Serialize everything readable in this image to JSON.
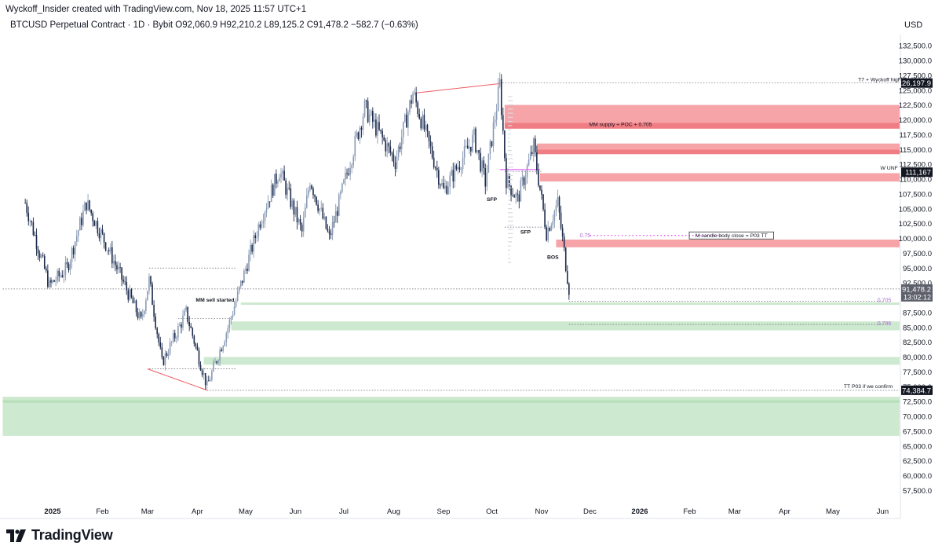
{
  "header": {
    "credit": "Wyckoff_Insider created with TradingView.com, Nov 18, 2025 11:57 UTC+1",
    "symbol_line": "BTCUSD Perpetual Contract · 1D · Bybit   O92,060.9  H92,210.2  L89,125.2  C91,478.2  −582.7 (−0.63%)",
    "currency": "USD"
  },
  "brand": {
    "name": "TradingView",
    "icon": "tradingview-logo-icon"
  },
  "colors": {
    "bull": "#8a9bb5",
    "bear": "#1c2a4a",
    "supply": "#f7a4a8",
    "supply_dark": "#ef7d83",
    "demand": "#cde9cf",
    "demand_dark": "#b6deb8",
    "fib": "#b06ad6",
    "magenta": "#e040fb"
  },
  "chart_data": {
    "type": "candlestick",
    "title": "BTCUSD Perpetual Contract · 1D · Bybit",
    "ylabel": "USD",
    "ylim": [
      55000,
      135000
    ],
    "y_ticks": [
      "132,500.0",
      "130,000.0",
      "127,500.0",
      "125,000.0",
      "122,500.0",
      "120,000.0",
      "117,500.0",
      "115,000.0",
      "112,500.0",
      "110,000.0",
      "107,500.0",
      "105,000.0",
      "102,500.0",
      "100,000.0",
      "97,500.0",
      "95,000.0",
      "92,500.0",
      "90,000.0",
      "87,500.0",
      "85,000.0",
      "82,500.0",
      "80,000.0",
      "77,500.0",
      "75,000.0",
      "72,500.0",
      "70,000.0",
      "67,500.0",
      "65,000.0",
      "62,500.0",
      "60,000.0",
      "57,500.0"
    ],
    "x_ticks": [
      "2025",
      "Feb",
      "Mar",
      "Apr",
      "May",
      "Jun",
      "Jul",
      "Aug",
      "Sep",
      "Oct",
      "Nov",
      "Dec",
      "2026",
      "Feb",
      "Mar",
      "Apr",
      "May",
      "Jun"
    ],
    "price_badges": [
      {
        "text": "126,197.9",
        "value": 126197.9
      },
      {
        "text": "111,167",
        "value": 111167
      },
      {
        "text": "74,384.7",
        "value": 74384.7
      }
    ],
    "last_price": {
      "text": "91,478.2",
      "value": 91478.2,
      "countdown": "13:02:12"
    },
    "ohlc": {
      "open": 92060.9,
      "high": 92210.2,
      "low": 89125.2,
      "close": 91478.2,
      "change": -582.7,
      "change_pct": -0.63
    },
    "pivots": [
      {
        "date": "2024-12-15",
        "price": 106000
      },
      {
        "date": "2024-12-30",
        "price": 92000
      },
      {
        "date": "2025-01-10",
        "price": 95000
      },
      {
        "date": "2025-01-22",
        "price": 106000
      },
      {
        "date": "2025-02-05",
        "price": 98000
      },
      {
        "date": "2025-02-25",
        "price": 86000
      },
      {
        "date": "2025-03-02",
        "price": 93000
      },
      {
        "date": "2025-03-10",
        "price": 79000
      },
      {
        "date": "2025-03-25",
        "price": 87500
      },
      {
        "date": "2025-04-07",
        "price": 75000
      },
      {
        "date": "2025-04-20",
        "price": 85000
      },
      {
        "date": "2025-05-10",
        "price": 103000
      },
      {
        "date": "2025-05-22",
        "price": 111500
      },
      {
        "date": "2025-06-05",
        "price": 101000
      },
      {
        "date": "2025-06-10",
        "price": 110000
      },
      {
        "date": "2025-06-22",
        "price": 100000
      },
      {
        "date": "2025-07-14",
        "price": 122000
      },
      {
        "date": "2025-08-02",
        "price": 113000
      },
      {
        "date": "2025-08-13",
        "price": 124500
      },
      {
        "date": "2025-09-01",
        "price": 108000
      },
      {
        "date": "2025-09-20",
        "price": 117000
      },
      {
        "date": "2025-09-27",
        "price": 109500
      },
      {
        "date": "2025-10-06",
        "price": 126000
      },
      {
        "date": "2025-10-10",
        "price": 110000
      },
      {
        "date": "2025-10-17",
        "price": 106500
      },
      {
        "date": "2025-10-27",
        "price": 115500
      },
      {
        "date": "2025-11-04",
        "price": 101000
      },
      {
        "date": "2025-11-11",
        "price": 106000
      },
      {
        "date": "2025-11-18",
        "price": 91478
      }
    ],
    "zones": [
      {
        "x1": "2025-10-09",
        "x2": "2026-07-10",
        "y1": 119500,
        "y2": 122500,
        "kind": "supply"
      },
      {
        "x1": "2025-10-09",
        "x2": "2026-07-10",
        "y1": 118500,
        "y2": 119500,
        "kind": "supply_dark"
      },
      {
        "x1": "2025-10-29",
        "x2": "2026-07-10",
        "y1": 115000,
        "y2": 116000,
        "kind": "supply"
      },
      {
        "x1": "2025-10-29",
        "x2": "2026-07-10",
        "y1": 114200,
        "y2": 115000,
        "kind": "supply_dark"
      },
      {
        "x1": "2025-10-31",
        "x2": "2026-07-10",
        "y1": 109600,
        "y2": 111000,
        "kind": "supply"
      },
      {
        "x1": "2025-11-10",
        "x2": "2026-07-10",
        "y1": 98500,
        "y2": 99800,
        "kind": "supply"
      },
      {
        "x1": "2025-04-28",
        "x2": "2026-07-10",
        "y1": 88800,
        "y2": 89200,
        "kind": "demand"
      },
      {
        "x1": "2025-04-22",
        "x2": "2026-07-10",
        "y1": 84500,
        "y2": 86000,
        "kind": "demand"
      },
      {
        "x1": "2025-04-05",
        "x2": "2026-07-10",
        "y1": 78700,
        "y2": 80000,
        "kind": "demand"
      },
      {
        "x1": "2024-12-01",
        "x2": "2026-07-10",
        "y1": 66700,
        "y2": 73300,
        "kind": "demand"
      },
      {
        "x1": "2024-12-01",
        "x2": "2026-07-10",
        "y1": 72300,
        "y2": 72700,
        "kind": "demand_dark"
      }
    ],
    "annotations": [
      {
        "text": "T7 + Wyckoff high",
        "date": "2026-05-30",
        "price": 126800
      },
      {
        "text": "MM supply + POC + 0.705",
        "date": "2025-12-20",
        "price": 119300
      },
      {
        "text": "W UNF",
        "date": "2026-06-05",
        "price": 111900
      },
      {
        "text": "M candle body close = P03 TT",
        "date": "2026-02-27",
        "price": 100500
      },
      {
        "text": "0.75",
        "date": "2025-11-28",
        "price": 100500
      },
      {
        "text": "MM sell started",
        "date": "2025-04-12",
        "price": 89700
      },
      {
        "text": "0.705",
        "date": "2026-06-02",
        "price": 89600
      },
      {
        "text": "0.786",
        "date": "2026-06-02",
        "price": 85700
      },
      {
        "text": "TT P03 if we confirm",
        "date": "2026-05-23",
        "price": 75100
      },
      {
        "text": "SFP",
        "date": "2025-10-01",
        "price": 106600
      },
      {
        "text": "SFP",
        "date": "2025-10-22",
        "price": 101100
      },
      {
        "text": "BOS",
        "date": "2025-11-08",
        "price": 96900
      }
    ],
    "dotted_levels": [
      {
        "x1": "2025-10-06",
        "x2": "2026-07-10",
        "price": 126197.9
      },
      {
        "x1": "2025-10-09",
        "x2": "2025-11-01",
        "price": 111300
      },
      {
        "x1": "2025-10-09",
        "x2": "2025-11-02",
        "price": 101900
      },
      {
        "x1": "2025-03-02",
        "x2": "2025-04-25",
        "price": 95000
      },
      {
        "x1": "2025-03-20",
        "x2": "2025-04-23",
        "price": 86500
      },
      {
        "x1": "2025-03-02",
        "x2": "2025-04-25",
        "price": 78000
      },
      {
        "x1": "2025-04-07",
        "x2": "2026-07-10",
        "price": 74384.7
      },
      {
        "x1": "2024-12-01",
        "x2": "2026-07-10",
        "price": 91478.2
      },
      {
        "x1": "2025-11-18",
        "x2": "2026-06-02",
        "price": 89400
      },
      {
        "x1": "2025-11-18",
        "x2": "2026-06-02",
        "price": 85500
      }
    ],
    "trendlines": [
      {
        "x1": "2025-08-14",
        "y1": 124500,
        "x2": "2025-10-06",
        "y2": 126100
      },
      {
        "x1": "2025-03-01",
        "y1": 78000,
        "x2": "2025-04-07",
        "y2": 74400
      }
    ]
  }
}
